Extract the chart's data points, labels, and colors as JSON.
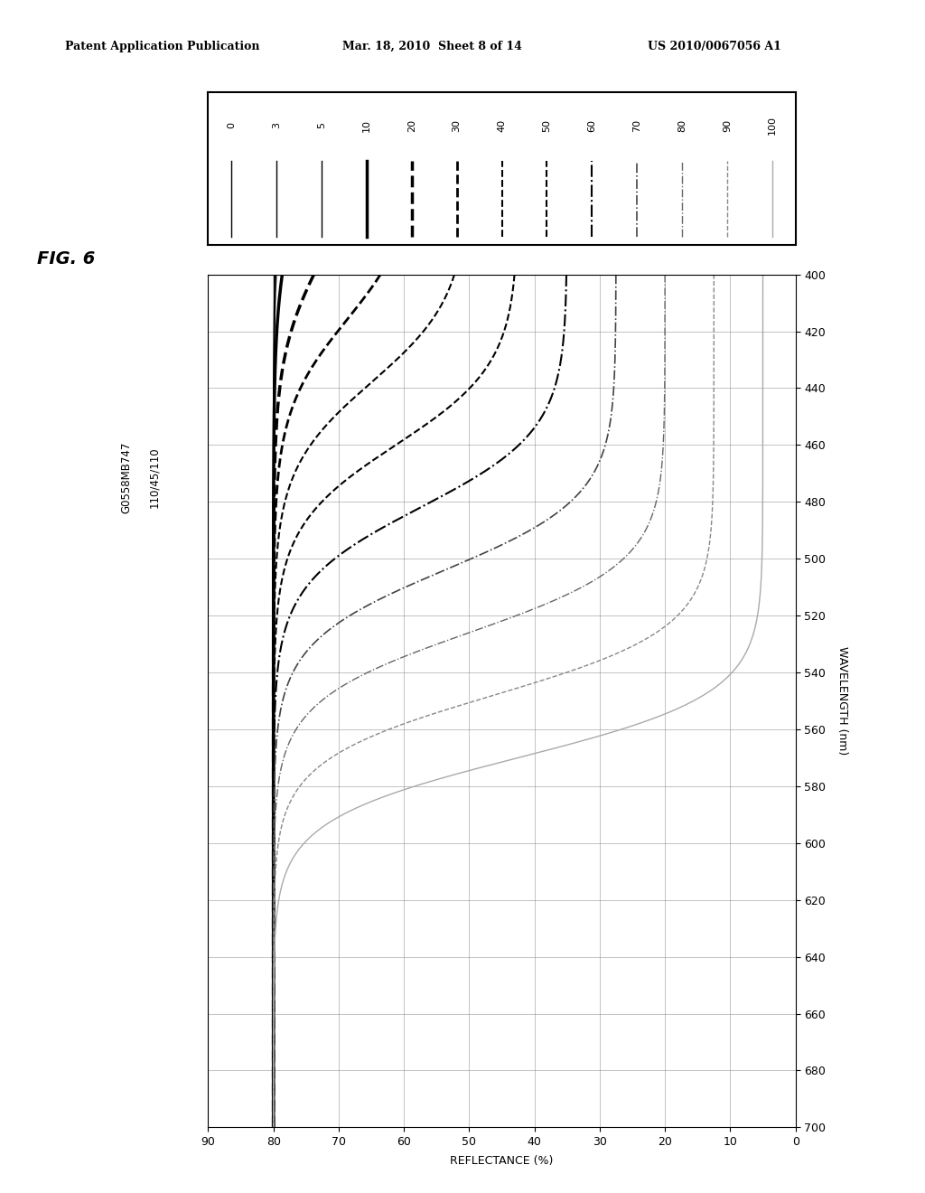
{
  "title": "FIG. 6",
  "subtitle1": "G0558MB747",
  "subtitle2": "110/45/110",
  "xlabel_bottom": "REFLECTANCE (%)",
  "ylabel_right": "WAVELENGTH (nm)",
  "patent_header": "Patent Application Publication",
  "patent_date": "Mar. 18, 2010  Sheet 8 of 14",
  "patent_number": "US 2010/0067056 A1",
  "wl_min": 400,
  "wl_max": 700,
  "refl_min": 0,
  "refl_max": 90,
  "wl_ticks": [
    400,
    420,
    440,
    460,
    480,
    500,
    520,
    540,
    560,
    580,
    600,
    620,
    640,
    660,
    680,
    700
  ],
  "refl_ticks": [
    0,
    10,
    20,
    30,
    40,
    50,
    60,
    70,
    80,
    90
  ],
  "legend_labels": [
    "0",
    "3",
    "5",
    "10",
    "20",
    "30",
    "40",
    "50",
    "60",
    "70",
    "80",
    "90",
    "100"
  ],
  "tone_levels": [
    0,
    3,
    5,
    10,
    20,
    30,
    40,
    50,
    60,
    70,
    80,
    90,
    100
  ],
  "bg_color": "#ffffff",
  "line_color": "#000000",
  "line_styles": [
    [
      "-",
      1.0,
      "#000000"
    ],
    [
      "-",
      1.0,
      "#000000"
    ],
    [
      "-",
      1.0,
      "#000000"
    ],
    [
      "-",
      2.5,
      "#000000"
    ],
    [
      "--",
      2.5,
      "#000000"
    ],
    [
      "--",
      2.0,
      "#000000"
    ],
    [
      "--",
      1.5,
      "#000000"
    ],
    [
      "--",
      1.5,
      "#000000"
    ],
    [
      "-.",
      1.5,
      "#000000"
    ],
    [
      "-.",
      1.2,
      "#444444"
    ],
    [
      "-.",
      1.0,
      "#666666"
    ],
    [
      "--",
      1.0,
      "#888888"
    ],
    [
      "-",
      1.0,
      "#aaaaaa"
    ]
  ]
}
